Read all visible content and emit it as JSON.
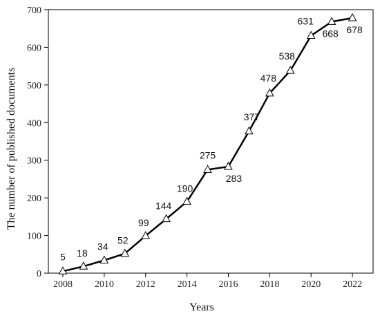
{
  "chart_data": {
    "type": "line",
    "title": "",
    "xlabel": "Years",
    "ylabel": "The number of published documents",
    "x": [
      2008,
      2009,
      2010,
      2011,
      2012,
      2013,
      2014,
      2015,
      2016,
      2017,
      2018,
      2019,
      2020,
      2021,
      2022
    ],
    "values": [
      5,
      18,
      34,
      52,
      99,
      144,
      190,
      275,
      283,
      377,
      478,
      538,
      631,
      668,
      678
    ],
    "xticks": [
      2008,
      2010,
      2012,
      2014,
      2016,
      2018,
      2020,
      2022
    ],
    "yticks": [
      0,
      100,
      200,
      300,
      400,
      500,
      600,
      700
    ],
    "xlim": [
      2007.3,
      2023.0
    ],
    "ylim": [
      0,
      700
    ],
    "marker": "triangle",
    "grid": false,
    "legend": false,
    "line_color": "#000000"
  }
}
